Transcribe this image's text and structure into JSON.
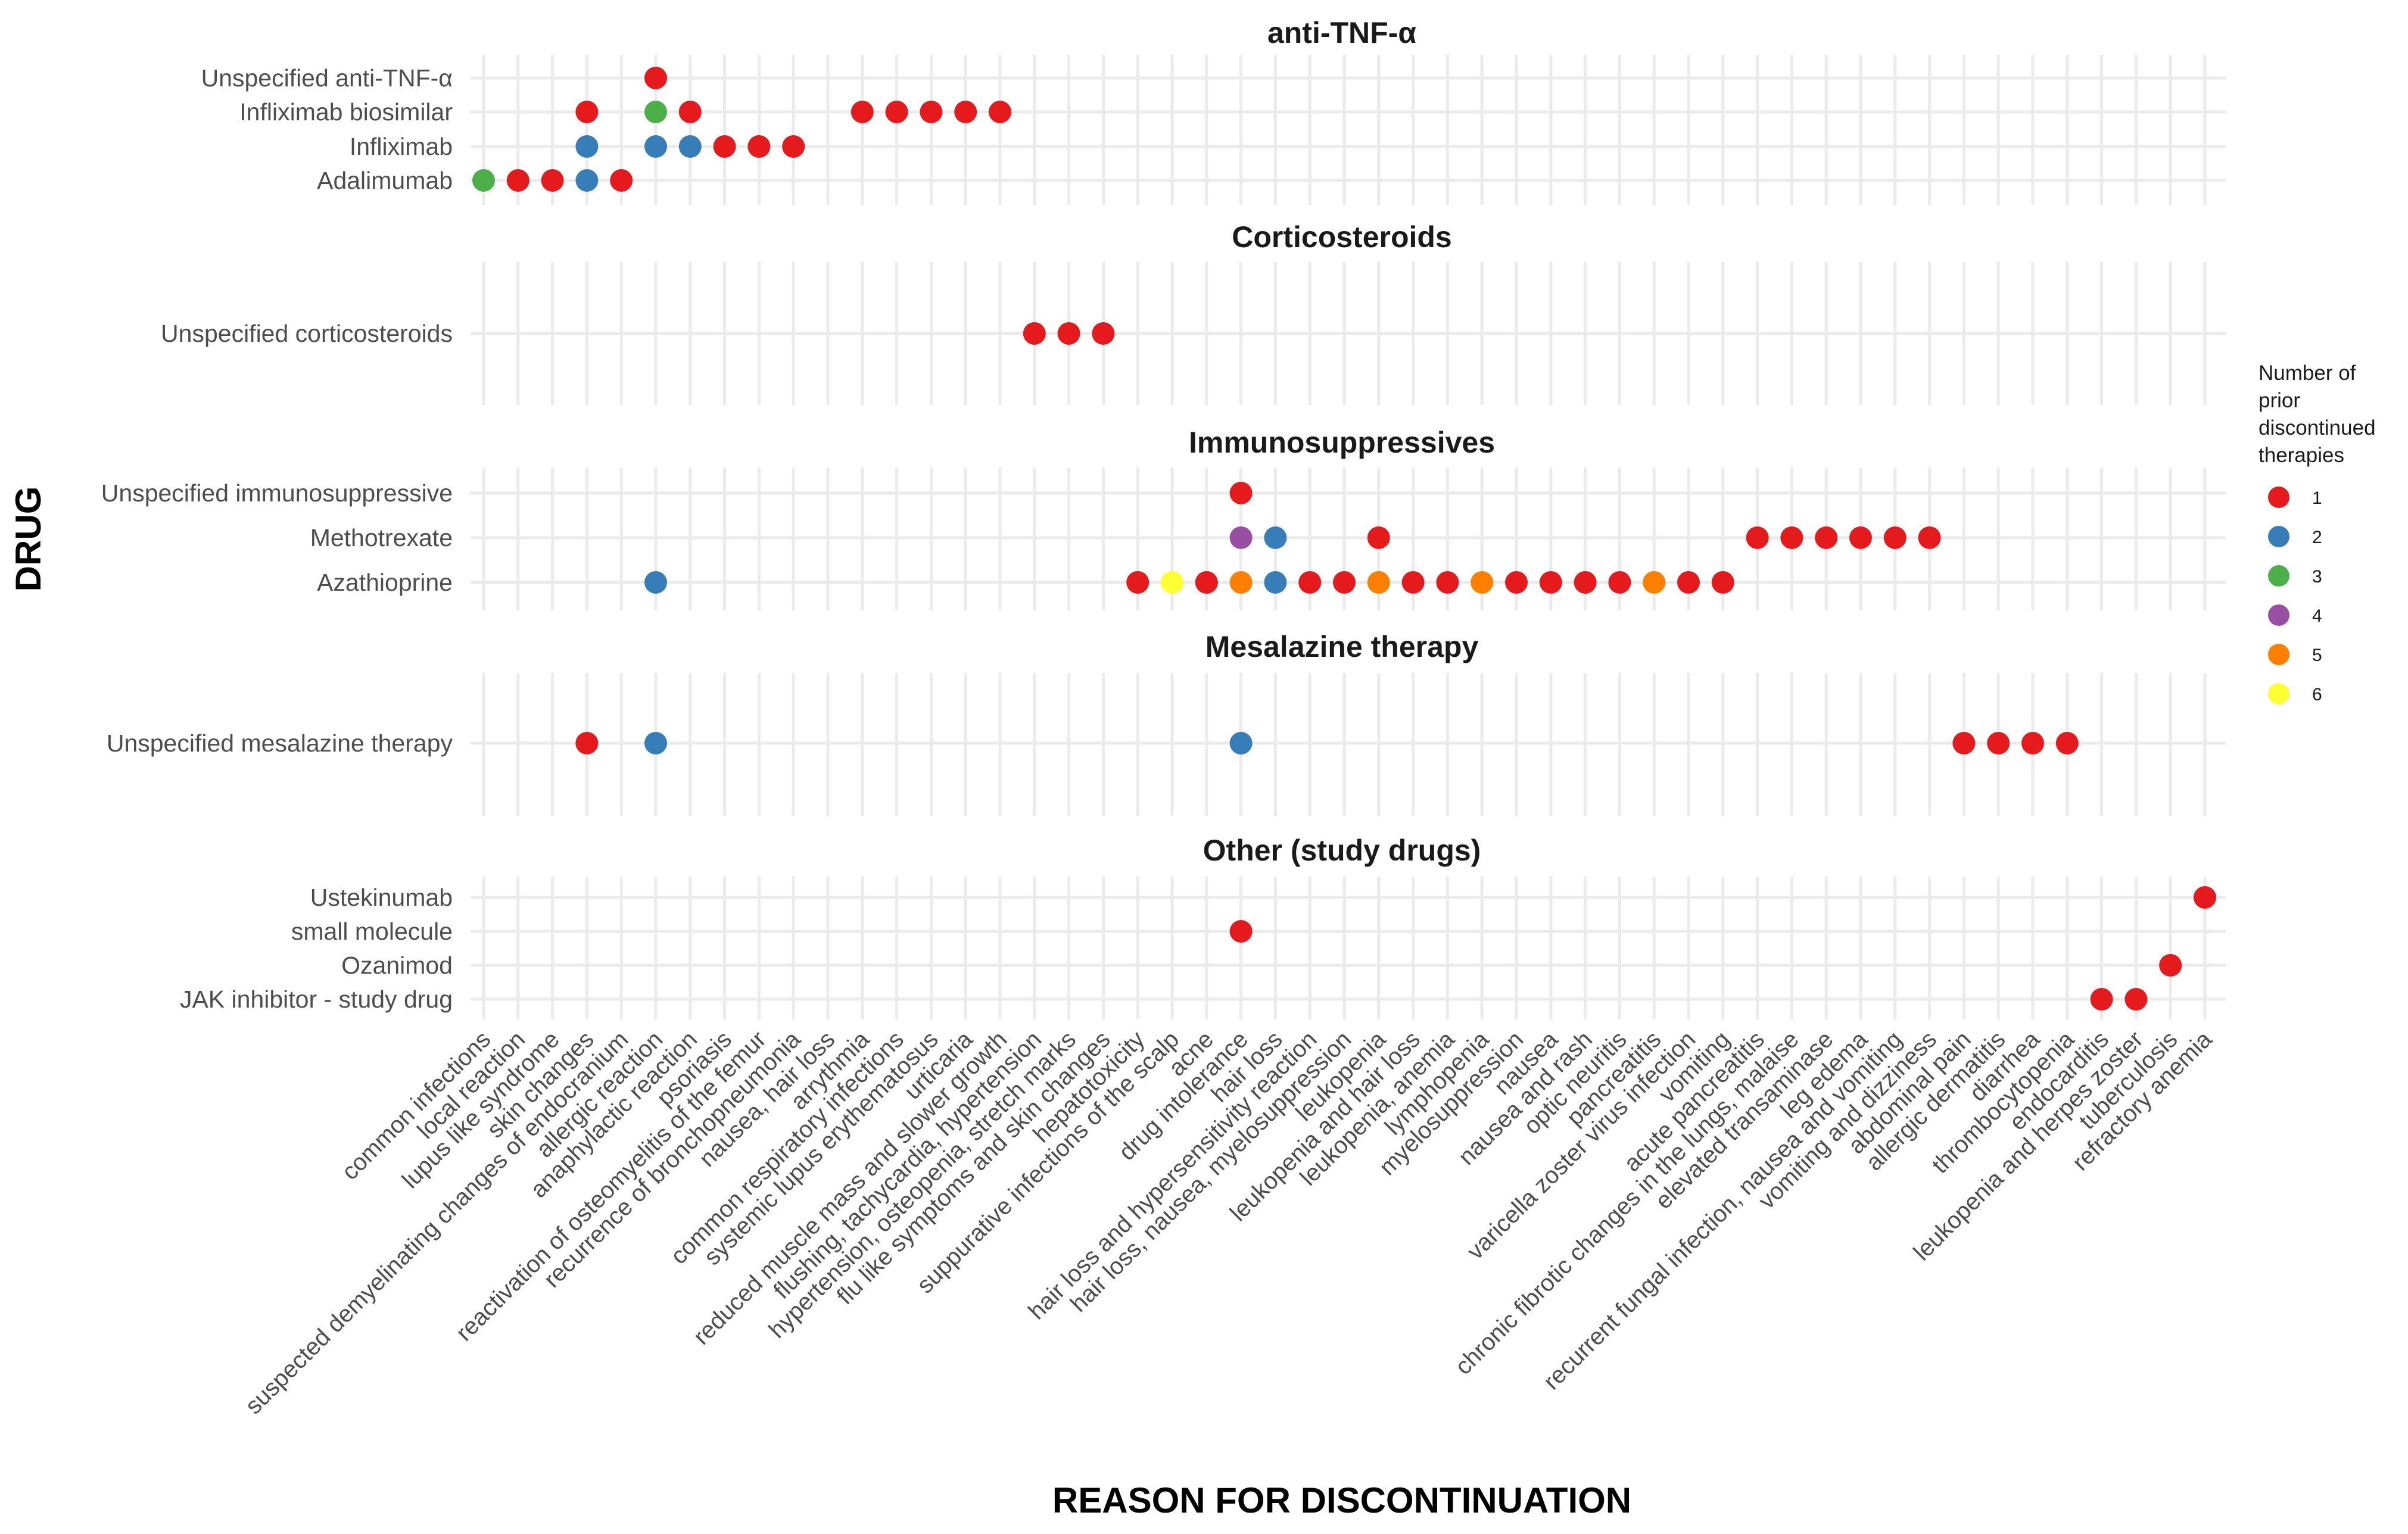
{
  "chart_data": {
    "type": "scatter",
    "title": "",
    "xlabel": "REASON FOR DISCONTINUATION",
    "ylabel": "DRUG",
    "grid": true,
    "legend": {
      "title_lines": [
        "Number of",
        "prior",
        "discontinued",
        "therapies"
      ],
      "placement": "right",
      "entries": [
        {
          "label": "1",
          "color": "#E41A1C"
        },
        {
          "label": "2",
          "color": "#377EB8"
        },
        {
          "label": "3",
          "color": "#4DAF4A"
        },
        {
          "label": "4",
          "color": "#984EA3"
        },
        {
          "label": "5",
          "color": "#FF7F00"
        },
        {
          "label": "6",
          "color": "#FFFF33"
        }
      ]
    },
    "x_categories": [
      "common infections",
      "local reaction",
      "lupus like syndrome",
      "skin changes",
      "suspected demyelinating changes of endocranium",
      "allergic reaction",
      "anaphylactic reaction",
      "psoriasis",
      "reactivation of osteomyelitis of the femur",
      "recurrence of bronchopneumonia",
      "nausea, hair loss",
      "arrythmia",
      "common respiratory infections",
      "systemic lupus erythematosus",
      "urticaria",
      "reduced muscle mass and slower growth",
      "flushing, tachycardia, hypertension",
      "hypertension, osteopenia, stretch marks",
      "flu like symptoms and skin changes",
      "hepatotoxicity",
      "suppurative infections of the scalp",
      "acne",
      "drug intolerance",
      "hair loss",
      "hair loss and hypersensitivity reaction",
      "hair loss, nausea, myelosuppression",
      "leukopenia",
      "leukopenia and hair loss",
      "leukopenia, anemia",
      "lymphopenia",
      "myelosuppression",
      "nausea",
      "nausea and rash",
      "optic neuritis",
      "pancreatitis",
      "varicella zoster virus infection",
      "vomiting",
      "acute pancreatitis",
      "chronic fibrotic changes in the lungs, malaise",
      "elevated transaminase",
      "leg edema",
      "recurrent fungal infection, nausea and vomiting",
      "vomiting and dizziness",
      "abdominal pain",
      "allergic dermatitis",
      "diarrhea",
      "thrombocytopenia",
      "endocarditis",
      "leukopenia and herpes zoster",
      "tuberculosis",
      "refractory anemia"
    ],
    "panels": [
      {
        "title": "anti-TNF-α",
        "rows": [
          "Unspecified anti-TNF-α",
          "Infliximab biosimilar",
          "Infliximab",
          "Adalimumab"
        ],
        "points": [
          {
            "drug": "Unspecified anti-TNF-α",
            "reason": "allergic reaction",
            "prior": 1
          },
          {
            "drug": "Infliximab biosimilar",
            "reason": "skin changes",
            "prior": 1
          },
          {
            "drug": "Infliximab biosimilar",
            "reason": "allergic reaction",
            "prior": 3
          },
          {
            "drug": "Infliximab biosimilar",
            "reason": "anaphylactic reaction",
            "prior": 1
          },
          {
            "drug": "Infliximab biosimilar",
            "reason": "arrythmia",
            "prior": 1
          },
          {
            "drug": "Infliximab biosimilar",
            "reason": "common respiratory infections",
            "prior": 1
          },
          {
            "drug": "Infliximab biosimilar",
            "reason": "systemic lupus erythematosus",
            "prior": 1
          },
          {
            "drug": "Infliximab biosimilar",
            "reason": "urticaria",
            "prior": 1
          },
          {
            "drug": "Infliximab biosimilar",
            "reason": "reduced muscle mass and slower growth",
            "prior": 1
          },
          {
            "drug": "Infliximab",
            "reason": "skin changes",
            "prior": 2
          },
          {
            "drug": "Infliximab",
            "reason": "allergic reaction",
            "prior": 2
          },
          {
            "drug": "Infliximab",
            "reason": "anaphylactic reaction",
            "prior": 2
          },
          {
            "drug": "Infliximab",
            "reason": "psoriasis",
            "prior": 1
          },
          {
            "drug": "Infliximab",
            "reason": "reactivation of osteomyelitis of the femur",
            "prior": 1
          },
          {
            "drug": "Infliximab",
            "reason": "recurrence of bronchopneumonia",
            "prior": 1
          },
          {
            "drug": "Adalimumab",
            "reason": "common infections",
            "prior": 3
          },
          {
            "drug": "Adalimumab",
            "reason": "local reaction",
            "prior": 1
          },
          {
            "drug": "Adalimumab",
            "reason": "lupus like syndrome",
            "prior": 1
          },
          {
            "drug": "Adalimumab",
            "reason": "skin changes",
            "prior": 2
          },
          {
            "drug": "Adalimumab",
            "reason": "suspected demyelinating changes of endocranium",
            "prior": 1
          }
        ]
      },
      {
        "title": "Corticosteroids",
        "rows": [
          "Unspecified corticosteroids"
        ],
        "points": [
          {
            "drug": "Unspecified corticosteroids",
            "reason": "flushing, tachycardia, hypertension",
            "prior": 1
          },
          {
            "drug": "Unspecified corticosteroids",
            "reason": "hypertension, osteopenia, stretch marks",
            "prior": 1
          },
          {
            "drug": "Unspecified corticosteroids",
            "reason": "flu like symptoms and skin changes",
            "prior": 1
          }
        ]
      },
      {
        "title": "Immunosuppressives",
        "rows": [
          "Unspecified immunosuppressive",
          "Methotrexate",
          "Azathioprine"
        ],
        "points": [
          {
            "drug": "Unspecified immunosuppressive",
            "reason": "drug intolerance",
            "prior": 1
          },
          {
            "drug": "Methotrexate",
            "reason": "drug intolerance",
            "prior": 4
          },
          {
            "drug": "Methotrexate",
            "reason": "hair loss",
            "prior": 2
          },
          {
            "drug": "Methotrexate",
            "reason": "leukopenia",
            "prior": 1
          },
          {
            "drug": "Methotrexate",
            "reason": "acute pancreatitis",
            "prior": 1
          },
          {
            "drug": "Methotrexate",
            "reason": "chronic fibrotic changes in the lungs, malaise",
            "prior": 1
          },
          {
            "drug": "Methotrexate",
            "reason": "elevated transaminase",
            "prior": 1
          },
          {
            "drug": "Methotrexate",
            "reason": "leg edema",
            "prior": 1
          },
          {
            "drug": "Methotrexate",
            "reason": "recurrent fungal infection, nausea and vomiting",
            "prior": 1
          },
          {
            "drug": "Methotrexate",
            "reason": "vomiting and dizziness",
            "prior": 1
          },
          {
            "drug": "Azathioprine",
            "reason": "allergic reaction",
            "prior": 2
          },
          {
            "drug": "Azathioprine",
            "reason": "hepatotoxicity",
            "prior": 1
          },
          {
            "drug": "Azathioprine",
            "reason": "suppurative infections of the scalp",
            "prior": 6
          },
          {
            "drug": "Azathioprine",
            "reason": "acne",
            "prior": 1
          },
          {
            "drug": "Azathioprine",
            "reason": "drug intolerance",
            "prior": 5
          },
          {
            "drug": "Azathioprine",
            "reason": "hair loss",
            "prior": 2
          },
          {
            "drug": "Azathioprine",
            "reason": "hair loss and hypersensitivity reaction",
            "prior": 1
          },
          {
            "drug": "Azathioprine",
            "reason": "hair loss, nausea, myelosuppression",
            "prior": 1
          },
          {
            "drug": "Azathioprine",
            "reason": "leukopenia",
            "prior": 5
          },
          {
            "drug": "Azathioprine",
            "reason": "leukopenia and hair loss",
            "prior": 1
          },
          {
            "drug": "Azathioprine",
            "reason": "leukopenia, anemia",
            "prior": 1
          },
          {
            "drug": "Azathioprine",
            "reason": "lymphopenia",
            "prior": 5
          },
          {
            "drug": "Azathioprine",
            "reason": "myelosuppression",
            "prior": 1
          },
          {
            "drug": "Azathioprine",
            "reason": "nausea",
            "prior": 1
          },
          {
            "drug": "Azathioprine",
            "reason": "nausea and rash",
            "prior": 1
          },
          {
            "drug": "Azathioprine",
            "reason": "optic neuritis",
            "prior": 1
          },
          {
            "drug": "Azathioprine",
            "reason": "pancreatitis",
            "prior": 5
          },
          {
            "drug": "Azathioprine",
            "reason": "varicella zoster virus infection",
            "prior": 1
          },
          {
            "drug": "Azathioprine",
            "reason": "vomiting",
            "prior": 1
          },
          {
            "drug": "Azathioprine",
            "reason": "acne",
            "prior": 1
          }
        ]
      },
      {
        "title": "Mesalazine therapy",
        "rows": [
          "Unspecified mesalazine therapy"
        ],
        "points": [
          {
            "drug": "Unspecified mesalazine therapy",
            "reason": "skin changes",
            "prior": 1
          },
          {
            "drug": "Unspecified mesalazine therapy",
            "reason": "allergic reaction",
            "prior": 2
          },
          {
            "drug": "Unspecified mesalazine therapy",
            "reason": "drug intolerance",
            "prior": 2
          },
          {
            "drug": "Unspecified mesalazine therapy",
            "reason": "abdominal pain",
            "prior": 1
          },
          {
            "drug": "Unspecified mesalazine therapy",
            "reason": "allergic dermatitis",
            "prior": 1
          },
          {
            "drug": "Unspecified mesalazine therapy",
            "reason": "diarrhea",
            "prior": 1
          },
          {
            "drug": "Unspecified mesalazine therapy",
            "reason": "thrombocytopenia",
            "prior": 1
          }
        ]
      },
      {
        "title": "Other (study drugs)",
        "rows": [
          "Ustekinumab",
          "small molecule",
          "Ozanimod",
          "JAK inhibitor - study drug"
        ],
        "points": [
          {
            "drug": "Ustekinumab",
            "reason": "refractory anemia",
            "prior": 1
          },
          {
            "drug": "small molecule",
            "reason": "drug intolerance",
            "prior": 1
          },
          {
            "drug": "Ozanimod",
            "reason": "tuberculosis",
            "prior": 1
          },
          {
            "drug": "JAK inhibitor - study drug",
            "reason": "endocarditis",
            "prior": 1
          },
          {
            "drug": "JAK inhibitor - study drug",
            "reason": "leukopenia and herpes zoster",
            "prior": 1
          }
        ]
      }
    ]
  }
}
